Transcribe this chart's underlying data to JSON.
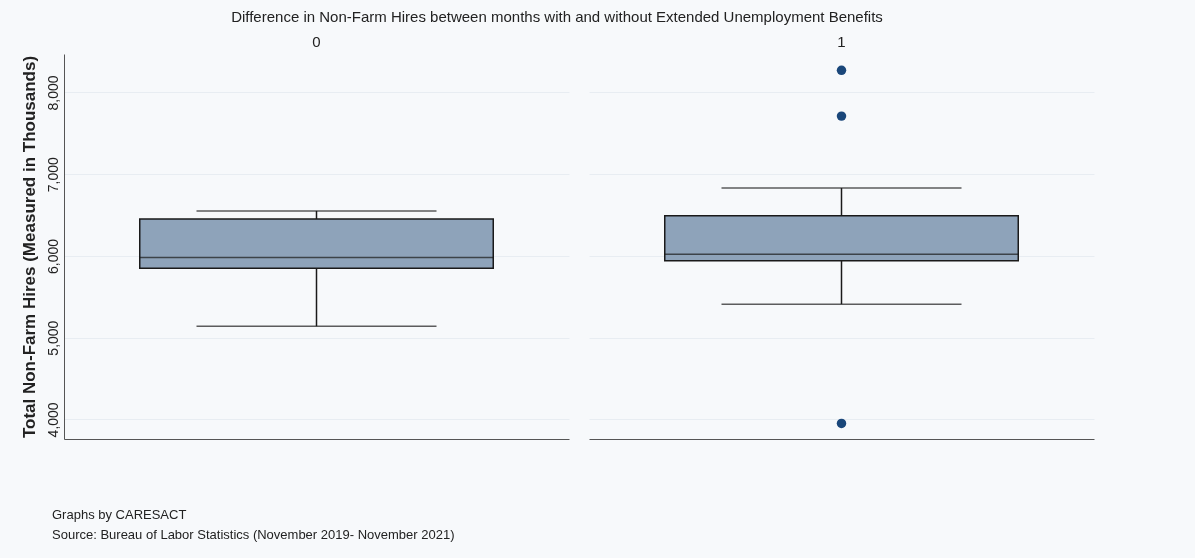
{
  "chart_data": {
    "type": "box",
    "title": "Difference in Non-Farm Hires between months with and without Extended Unemployment Benefits",
    "ylabel": "Total Non-Farm Hires (Measured in Thousands)",
    "categories": [
      "0",
      "1"
    ],
    "series": [
      {
        "color": "#8ea3ba",
        "boxes": [
          {
            "low": 5140,
            "q1": 5850,
            "median": 5980,
            "q3": 6450,
            "high": 6550
          },
          {
            "low": 5410,
            "q1": 5940,
            "median": 6020,
            "q3": 6490,
            "high": 6830,
            "outliers": [
              8270,
              7710,
              3950
            ]
          }
        ]
      }
    ],
    "ylim": [
      3760,
      8470
    ],
    "yticks": [
      {
        "value": 4000,
        "label": "4,000"
      },
      {
        "value": 5000,
        "label": "5,000"
      },
      {
        "value": 6000,
        "label": "6,000"
      },
      {
        "value": 7000,
        "label": "7,000"
      },
      {
        "value": 8000,
        "label": "8,000"
      }
    ],
    "grid": true,
    "tick_labels": "y",
    "annotations": [
      "Graphs by CARESACT",
      "Source: Bureau of Labor Statistics (November 2019- November 2021)"
    ]
  }
}
